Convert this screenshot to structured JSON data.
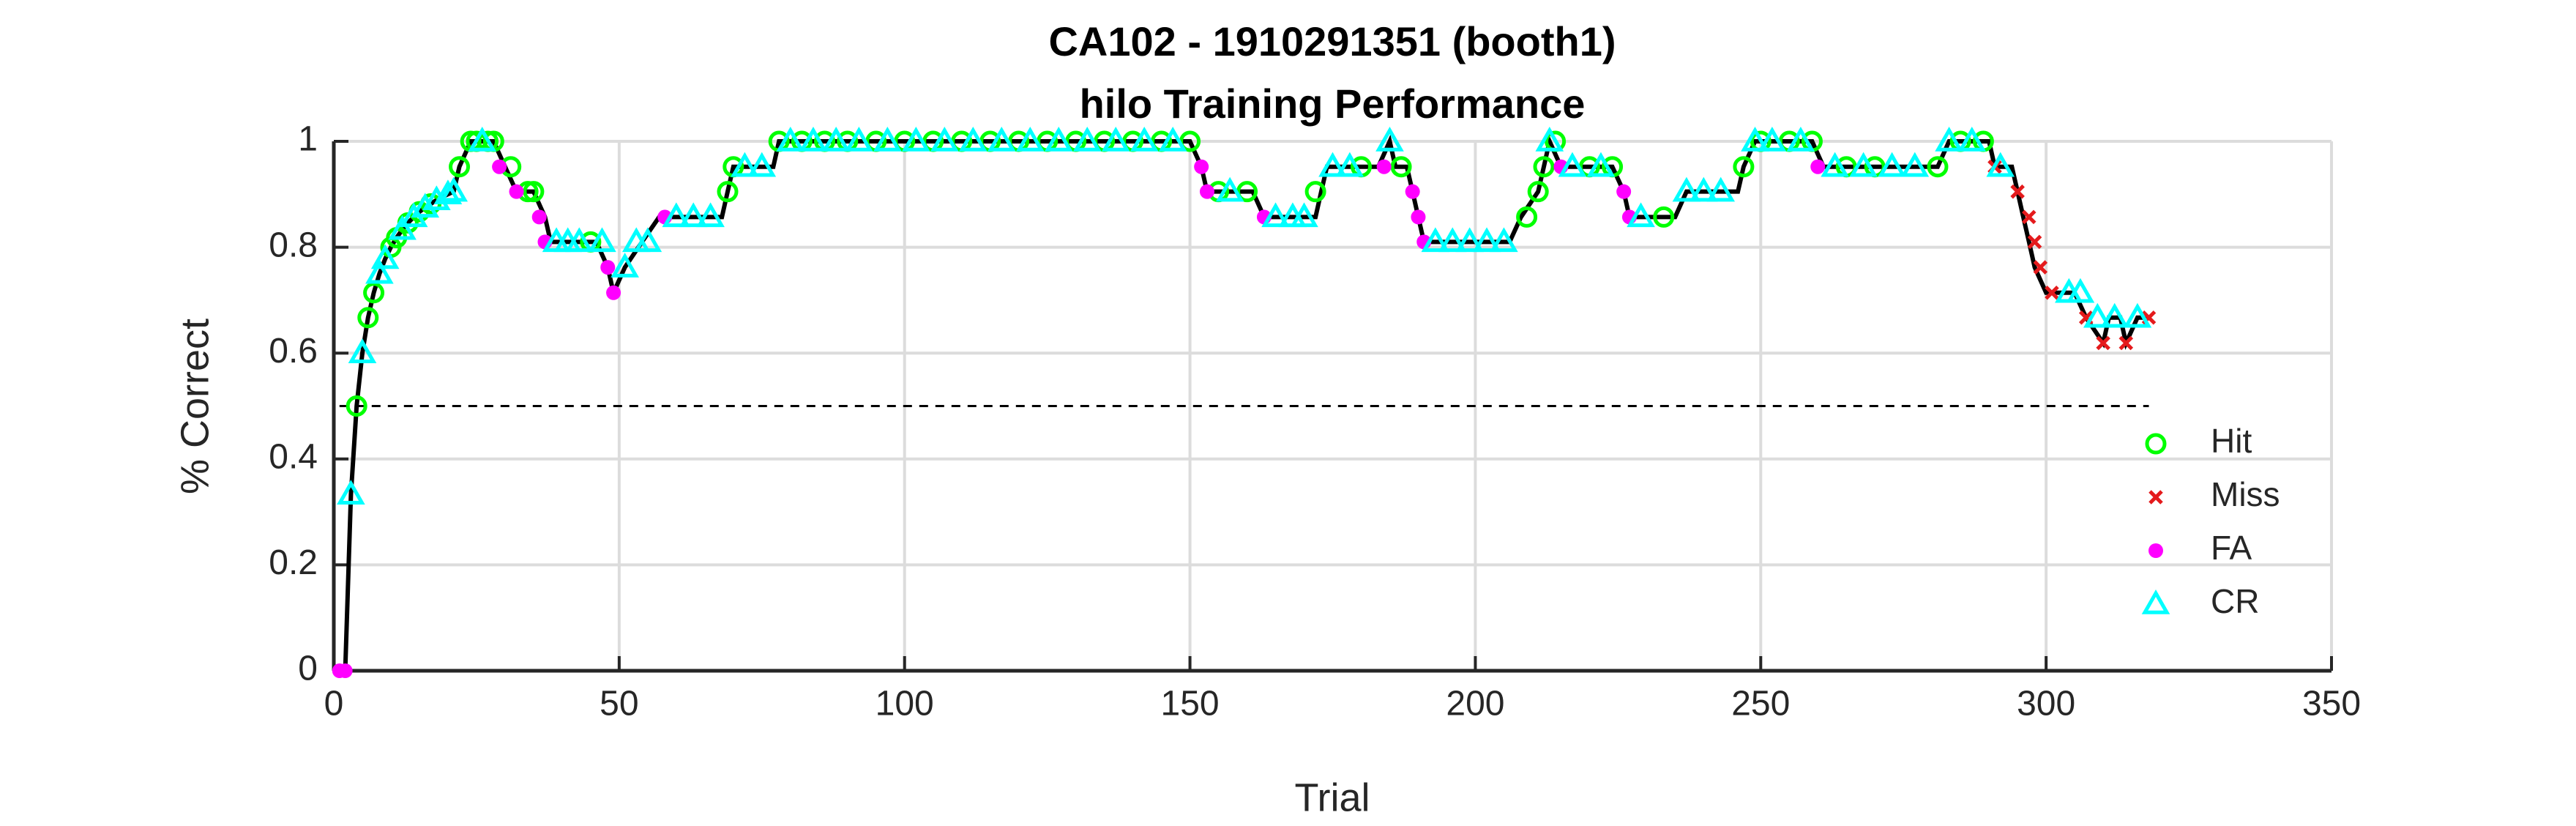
{
  "chart_data": {
    "type": "line",
    "title": [
      "CA102 - 1910291351 (booth1)",
      "hilo Training Performance"
    ],
    "xlabel": "Trial",
    "ylabel": "% Correct",
    "xlim": [
      0,
      350
    ],
    "xticks": [
      0,
      50,
      100,
      150,
      200,
      250,
      300,
      350
    ],
    "ylim": [
      0,
      1
    ],
    "yticks": [
      0,
      0.2,
      0.4,
      0.6,
      0.8,
      1
    ],
    "grid": true,
    "legend_position": "lower right",
    "reference_line": {
      "color": "#000000",
      "x": [
        1,
        318
      ],
      "values": [
        0.5,
        0.5
      ]
    },
    "performance_line": {
      "color": "#000000",
      "x": [
        1,
        2,
        3,
        4,
        5,
        6,
        7,
        8,
        9,
        10,
        11,
        12,
        13,
        14,
        15,
        16,
        17,
        18,
        19,
        20,
        21,
        22,
        24,
        28,
        30,
        32,
        35,
        37,
        38,
        46,
        48,
        49,
        51,
        54,
        57,
        68,
        69,
        70,
        77,
        78,
        150,
        152,
        153,
        161,
        163,
        172,
        173,
        174,
        183,
        185,
        186,
        188,
        189,
        190,
        191,
        206,
        208,
        211,
        212,
        213,
        215,
        224,
        226,
        227,
        235,
        237,
        246,
        247,
        249,
        259,
        261,
        281,
        283,
        290,
        291,
        294,
        295,
        296,
        297,
        298,
        300,
        305,
        307,
        310,
        311,
        313,
        314,
        316,
        318
      ],
      "values": [
        0,
        0,
        0.333,
        0.5,
        0.6,
        0.667,
        0.714,
        0.75,
        0.778,
        0.8,
        0.818,
        0.833,
        0.846,
        0.857,
        0.867,
        0.875,
        0.882,
        0.889,
        0.895,
        0.9,
        0.905,
        0.952,
        1,
        1,
        0.952,
        0.905,
        0.905,
        0.857,
        0.81,
        0.81,
        0.762,
        0.714,
        0.762,
        0.81,
        0.857,
        0.857,
        0.905,
        0.952,
        0.952,
        1,
        1,
        0.952,
        0.905,
        0.905,
        0.857,
        0.857,
        0.905,
        0.952,
        0.952,
        1,
        0.952,
        0.952,
        0.905,
        0.857,
        0.81,
        0.81,
        0.857,
        0.905,
        0.952,
        1,
        0.952,
        0.952,
        0.905,
        0.857,
        0.857,
        0.905,
        0.905,
        0.952,
        1,
        1,
        0.952,
        0.952,
        1,
        1,
        0.952,
        0.952,
        0.905,
        0.857,
        0.81,
        0.762,
        0.714,
        0.714,
        0.667,
        0.619,
        0.667,
        0.667,
        0.619,
        0.667,
        0.667
      ]
    },
    "series": [
      {
        "name": "Hit",
        "marker": "circle",
        "color": "#00ff00",
        "x": [
          4,
          6,
          7,
          10,
          11,
          13,
          15,
          17,
          22,
          24,
          25,
          27,
          28,
          31,
          34,
          35,
          45,
          69,
          70,
          78,
          82,
          86,
          90,
          95,
          100,
          105,
          110,
          115,
          120,
          125,
          130,
          135,
          140,
          145,
          150,
          155,
          160,
          172,
          180,
          187,
          209,
          211,
          212,
          214,
          220,
          224,
          233,
          247,
          250,
          255,
          259,
          265,
          270,
          281,
          285,
          289
        ],
        "values": [
          0.5,
          0.667,
          0.714,
          0.8,
          0.818,
          0.846,
          0.867,
          0.882,
          0.952,
          1,
          1,
          1,
          1,
          0.952,
          0.905,
          0.905,
          0.81,
          0.905,
          0.952,
          1,
          1,
          1,
          1,
          1,
          1,
          1,
          1,
          1,
          1,
          1,
          1,
          1,
          1,
          1,
          1,
          0.905,
          0.905,
          0.905,
          0.952,
          0.952,
          0.857,
          0.905,
          0.952,
          1,
          0.952,
          0.952,
          0.857,
          0.952,
          1,
          1,
          1,
          0.952,
          0.952,
          0.952,
          1,
          1
        ]
      },
      {
        "name": "Miss",
        "marker": "cross",
        "color": "#e41a1c",
        "x": [
          291,
          295,
          297,
          298,
          299,
          301,
          307,
          310,
          314,
          318
        ],
        "values": [
          0.952,
          0.905,
          0.857,
          0.81,
          0.762,
          0.714,
          0.667,
          0.619,
          0.619,
          0.667
        ]
      },
      {
        "name": "FA",
        "marker": "dot",
        "color": "#ff00ff",
        "x": [
          1,
          2,
          29,
          32,
          36,
          37,
          48,
          49,
          58,
          152,
          153,
          163,
          184,
          189,
          190,
          191,
          215,
          226,
          227,
          260
        ],
        "values": [
          0,
          0,
          0.952,
          0.905,
          0.857,
          0.81,
          0.762,
          0.714,
          0.857,
          0.952,
          0.905,
          0.857,
          0.952,
          0.905,
          0.857,
          0.81,
          0.952,
          0.905,
          0.857,
          0.952
        ]
      },
      {
        "name": "CR",
        "marker": "triangle",
        "color": "#00ffff",
        "x": [
          3,
          5,
          8,
          9,
          12,
          14,
          16,
          18,
          20,
          21,
          26,
          39,
          41,
          43,
          47,
          51,
          53,
          55,
          60,
          63,
          66,
          72,
          75,
          80,
          84,
          88,
          92,
          97,
          102,
          107,
          112,
          117,
          122,
          127,
          132,
          137,
          142,
          147,
          157,
          165,
          168,
          170,
          175,
          178,
          185,
          193,
          196,
          199,
          202,
          205,
          213,
          217,
          222,
          229,
          237,
          240,
          243,
          249,
          252,
          257,
          263,
          268,
          273,
          277,
          283,
          287,
          292,
          304,
          306,
          309,
          312,
          316
        ],
        "values": [
          0.333,
          0.6,
          0.75,
          0.778,
          0.833,
          0.857,
          0.875,
          0.889,
          0.9,
          0.905,
          1,
          0.81,
          0.81,
          0.81,
          0.81,
          0.762,
          0.81,
          0.81,
          0.857,
          0.857,
          0.857,
          0.952,
          0.952,
          1,
          1,
          1,
          1,
          1,
          1,
          1,
          1,
          1,
          1,
          1,
          1,
          1,
          1,
          1,
          0.905,
          0.857,
          0.857,
          0.857,
          0.952,
          0.952,
          1,
          0.81,
          0.81,
          0.81,
          0.81,
          0.81,
          1,
          0.952,
          0.952,
          0.857,
          0.905,
          0.905,
          0.905,
          1,
          1,
          1,
          0.952,
          0.952,
          0.952,
          0.952,
          1,
          1,
          0.952,
          0.714,
          0.714,
          0.667,
          0.667,
          0.667
        ]
      }
    ]
  }
}
